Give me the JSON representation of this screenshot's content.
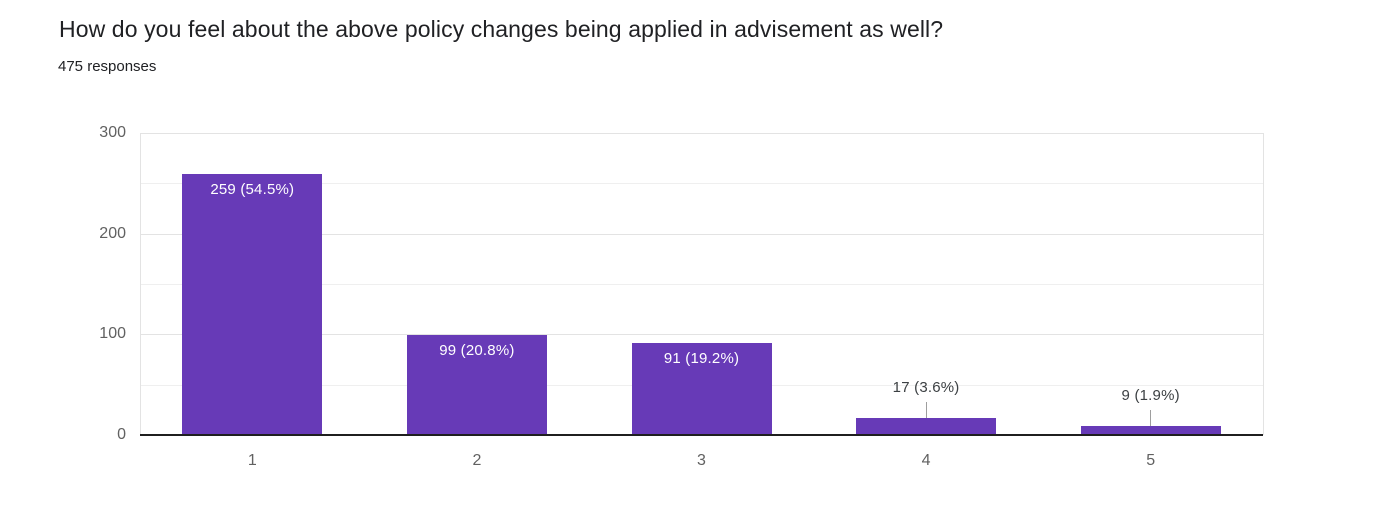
{
  "page": {
    "title": "How do you feel about the above policy changes being applied in advisement as well?",
    "subtitle": "475 responses"
  },
  "chart_data": {
    "type": "bar",
    "title": "How do you feel about the above policy changes being applied in advisement as well?",
    "subtitle": "475 responses",
    "categories": [
      "1",
      "2",
      "3",
      "4",
      "5"
    ],
    "values": [
      259,
      99,
      91,
      17,
      9
    ],
    "value_labels": [
      "259 (54.5%)",
      "99 (20.8%)",
      "91 (19.2%)",
      "17 (3.6%)",
      "9 (1.9%)"
    ],
    "xlabel": "",
    "ylabel": "",
    "ylim": [
      0,
      300
    ],
    "yticks": [
      0,
      100,
      200,
      300
    ],
    "gridline_step": 50,
    "grid": true,
    "legend": "none",
    "colors": {
      "bar": "#673ab7",
      "bar_label_inside": "#ffffff",
      "bar_label_outside": "#3c4043",
      "stem": "#9e9e9e",
      "axis_tick_label": "#616161",
      "gridline_major": "#e3e3e3",
      "gridline_minor": "#efefef",
      "axis_line": "#1f1f1f",
      "title": "#202124",
      "subtitle": "#202124"
    }
  }
}
